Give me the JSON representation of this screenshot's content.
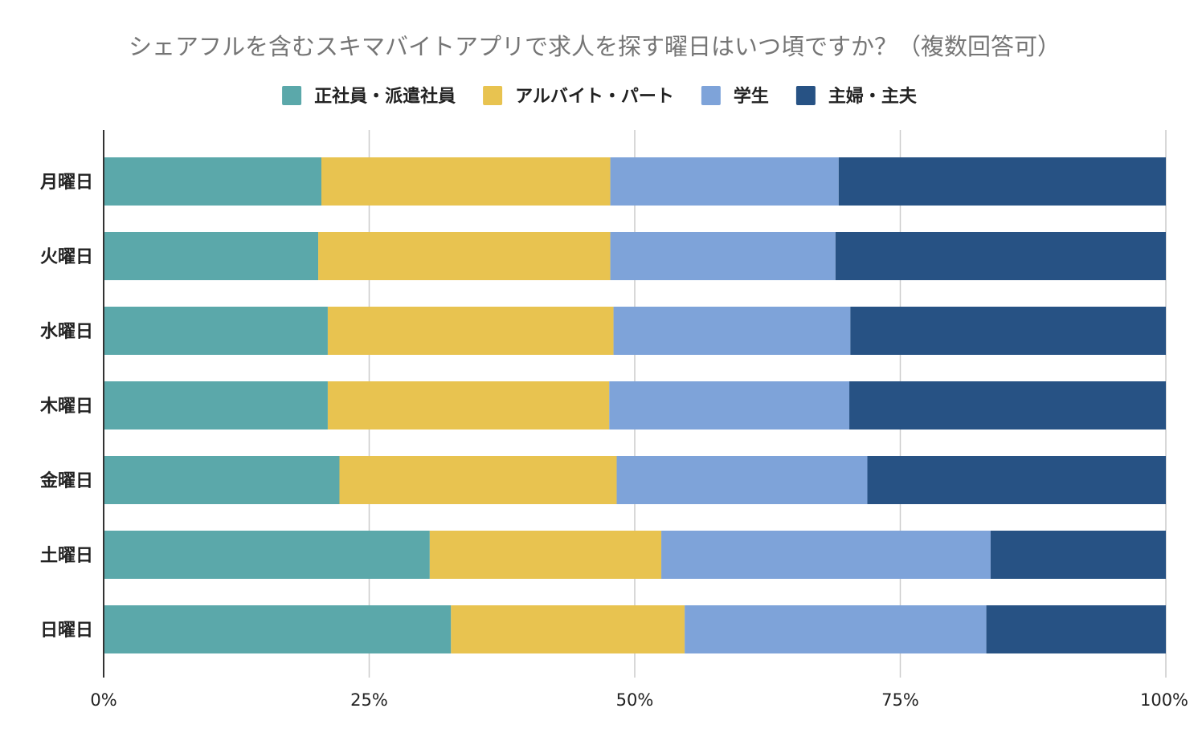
{
  "chart_data": {
    "type": "bar",
    "orientation": "horizontal",
    "stacked": "percent",
    "title": "シェアフルを含むスキマバイトアプリで求人を探す曜日はいつ頃ですか？（複数回答可）",
    "categories": [
      "月曜日",
      "火曜日",
      "水曜日",
      "木曜日",
      "金曜日",
      "土曜日",
      "日曜日"
    ],
    "series": [
      {
        "name": "正社員・派遣社員",
        "color": "#5ba8aa",
        "values": [
          20.5,
          20.2,
          21.1,
          21.1,
          22.2,
          30.7,
          32.7
        ]
      },
      {
        "name": "アルバイト・パート",
        "color": "#e8c350",
        "values": [
          27.2,
          27.5,
          26.9,
          26.5,
          26.1,
          21.8,
          22.0
        ]
      },
      {
        "name": "学生",
        "color": "#7ea3d9",
        "values": [
          21.5,
          21.2,
          22.3,
          22.6,
          23.6,
          31.0,
          28.4
        ]
      },
      {
        "name": "主婦・主夫",
        "color": "#275284",
        "values": [
          30.8,
          31.1,
          29.7,
          29.8,
          28.1,
          16.5,
          16.9
        ]
      }
    ],
    "xlim": [
      0,
      100
    ],
    "xticks": [
      "0%",
      "25%",
      "50%",
      "75%",
      "100%"
    ],
    "grid": true,
    "legend_position": "top"
  }
}
